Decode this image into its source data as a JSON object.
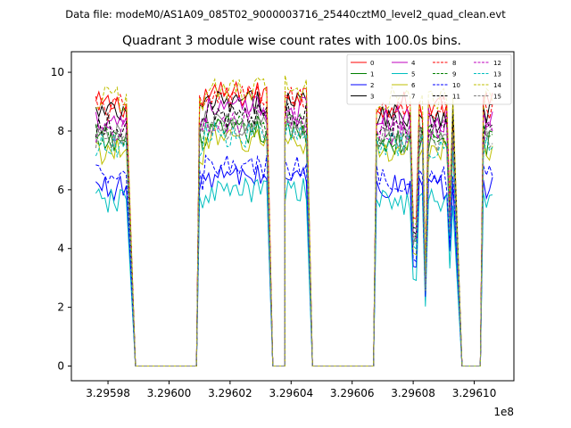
{
  "figure": {
    "suptitle": "Data file: modeM0/AS1A09_085T02_9000003716_25440cztM0_level2_quad_clean.evt"
  },
  "chart_data": {
    "type": "line",
    "title": "Quadrant 3 module wise count rates with 100.0s bins.",
    "xlabel": "",
    "ylabel": "",
    "x_offset_label": "1e8",
    "x_ticks": [
      3.29598,
      3.296,
      3.29602,
      3.29604,
      3.29606,
      3.29608,
      3.2961
    ],
    "x_tick_labels": [
      "3.29598",
      "3.29600",
      "3.29602",
      "3.29604",
      "3.29606",
      "3.29608",
      "3.29610"
    ],
    "y_ticks": [
      0,
      2,
      4,
      6,
      8,
      10
    ],
    "y_tick_labels": [
      "0",
      "2",
      "4",
      "6",
      "8",
      "10"
    ],
    "xlim": [
      3.295968,
      3.296113
    ],
    "ylim": [
      -0.5,
      10.7
    ],
    "grid": false,
    "legend_position": "top-right",
    "legend_columns": 4,
    "x_unit_note": "x values in units of 1e8",
    "segments": [
      {
        "start": 3.295976,
        "end": 3.295986,
        "state": "on"
      },
      {
        "start": 3.295989,
        "end": 3.296009,
        "state": "off"
      },
      {
        "start": 3.29601,
        "end": 3.296032,
        "state": "on"
      },
      {
        "start": 3.296034,
        "end": 3.296038,
        "state": "off"
      },
      {
        "start": 3.296038,
        "end": 3.296045,
        "state": "on"
      },
      {
        "start": 3.296047,
        "end": 3.296067,
        "state": "off"
      },
      {
        "start": 3.296068,
        "end": 3.296093,
        "state": "on"
      },
      {
        "start": 3.296096,
        "end": 3.296102,
        "state": "off"
      },
      {
        "start": 3.296103,
        "end": 3.296106,
        "state": "on"
      }
    ],
    "dips": [
      {
        "x": 3.2960805,
        "depth": 0.55
      },
      {
        "x": 3.2960843,
        "depth": 0.35
      },
      {
        "x": 3.2960921,
        "depth": 0.6
      }
    ],
    "series": [
      {
        "name": "0",
        "color": "#ff0000",
        "dash": "solid",
        "level": 8.9
      },
      {
        "name": "1",
        "color": "#008000",
        "dash": "solid",
        "level": 7.6
      },
      {
        "name": "2",
        "color": "#0000ff",
        "dash": "solid",
        "level": 6.1
      },
      {
        "name": "3",
        "color": "#000000",
        "dash": "solid",
        "level": 8.6
      },
      {
        "name": "4",
        "color": "#bf00bf",
        "dash": "solid",
        "level": 8.4
      },
      {
        "name": "5",
        "color": "#00bfbf",
        "dash": "solid",
        "level": 5.6
      },
      {
        "name": "6",
        "color": "#bfbf00",
        "dash": "solid",
        "level": 7.3
      },
      {
        "name": "7",
        "color": "#808080",
        "dash": "solid",
        "level": 7.9
      },
      {
        "name": "8",
        "color": "#ff0000",
        "dash": "dashed",
        "level": 8.8
      },
      {
        "name": "9",
        "color": "#008000",
        "dash": "dashed",
        "level": 7.8
      },
      {
        "name": "10",
        "color": "#0000ff",
        "dash": "dashed",
        "level": 6.4
      },
      {
        "name": "11",
        "color": "#000000",
        "dash": "dashed",
        "level": 8.2
      },
      {
        "name": "12",
        "color": "#bf00bf",
        "dash": "dashed",
        "level": 8.0
      },
      {
        "name": "13",
        "color": "#00bfbf",
        "dash": "dashed",
        "level": 7.5
      },
      {
        "name": "14",
        "color": "#bfbf00",
        "dash": "dashed",
        "level": 9.1
      },
      {
        "name": "15",
        "color": "#808080",
        "dash": "dashed",
        "level": 7.7
      }
    ]
  }
}
